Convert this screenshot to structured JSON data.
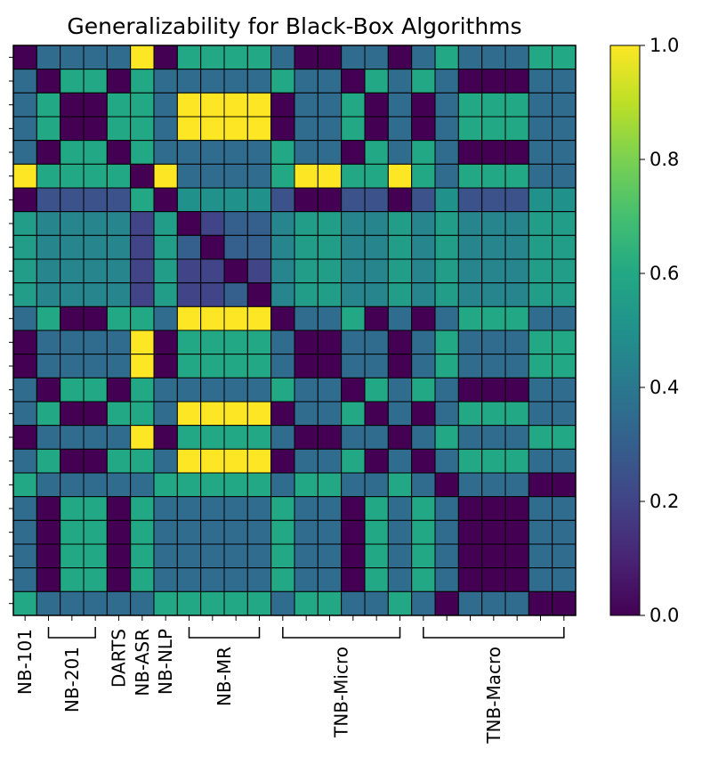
{
  "chart_data": {
    "type": "heatmap",
    "title": "Generalizability for Black-Box Algorithms",
    "xlabel": "",
    "ylabel": "",
    "colormap": "viridis",
    "colorbar": {
      "range": [
        0.0,
        1.0
      ],
      "ticks": [
        "0.0",
        "0.2",
        "0.4",
        "0.6",
        "0.8",
        "1.0"
      ]
    },
    "groups": [
      {
        "label": "NB-101",
        "cols": [
          0,
          0
        ]
      },
      {
        "label": "NB-201",
        "cols": [
          1,
          3
        ]
      },
      {
        "label": "DARTS",
        "cols": [
          4,
          4
        ]
      },
      {
        "label": "NB-ASR",
        "cols": [
          5,
          5
        ]
      },
      {
        "label": "NB-NLP",
        "cols": [
          6,
          6
        ]
      },
      {
        "label": "NB-MR",
        "cols": [
          7,
          10
        ]
      },
      {
        "label": "TNB-Micro",
        "cols": [
          11,
          16
        ]
      },
      {
        "label": "TNB-Macro",
        "cols": [
          17,
          23
        ]
      }
    ],
    "matrix": [
      [
        0.0,
        0.35,
        0.35,
        0.35,
        0.35,
        1.0,
        0.0,
        0.6,
        0.6,
        0.6,
        0.6,
        0.35,
        0.0,
        0.0,
        0.35,
        0.35,
        0.0,
        0.35,
        0.6,
        0.35,
        0.35,
        0.35,
        0.6,
        0.6
      ],
      [
        0.35,
        0.0,
        0.6,
        0.6,
        0.0,
        0.6,
        0.35,
        0.35,
        0.35,
        0.35,
        0.35,
        0.6,
        0.35,
        0.35,
        0.0,
        0.6,
        0.35,
        0.6,
        0.35,
        0.0,
        0.0,
        0.0,
        0.35,
        0.35
      ],
      [
        0.35,
        0.6,
        0.0,
        0.0,
        0.6,
        0.6,
        0.35,
        1.0,
        1.0,
        1.0,
        1.0,
        0.0,
        0.35,
        0.35,
        0.6,
        0.0,
        0.35,
        0.0,
        0.35,
        0.6,
        0.6,
        0.6,
        0.35,
        0.35
      ],
      [
        0.35,
        0.6,
        0.0,
        0.0,
        0.6,
        0.6,
        0.35,
        1.0,
        1.0,
        1.0,
        1.0,
        0.0,
        0.35,
        0.35,
        0.6,
        0.0,
        0.35,
        0.0,
        0.35,
        0.6,
        0.6,
        0.6,
        0.35,
        0.35
      ],
      [
        0.35,
        0.0,
        0.6,
        0.6,
        0.0,
        0.6,
        0.35,
        0.35,
        0.35,
        0.35,
        0.35,
        0.6,
        0.35,
        0.35,
        0.0,
        0.6,
        0.35,
        0.6,
        0.35,
        0.0,
        0.0,
        0.0,
        0.35,
        0.35
      ],
      [
        1.0,
        0.6,
        0.6,
        0.6,
        0.6,
        0.0,
        1.0,
        0.35,
        0.35,
        0.35,
        0.35,
        0.6,
        1.0,
        1.0,
        0.6,
        0.6,
        1.0,
        0.6,
        0.35,
        0.6,
        0.6,
        0.6,
        0.35,
        0.35
      ],
      [
        0.0,
        0.25,
        0.25,
        0.25,
        0.25,
        0.6,
        0.0,
        0.5,
        0.5,
        0.5,
        0.5,
        0.25,
        0.0,
        0.0,
        0.25,
        0.25,
        0.0,
        0.25,
        0.5,
        0.25,
        0.25,
        0.25,
        0.5,
        0.5
      ],
      [
        0.55,
        0.45,
        0.45,
        0.45,
        0.45,
        0.2,
        0.55,
        0.0,
        0.2,
        0.3,
        0.3,
        0.45,
        0.55,
        0.55,
        0.45,
        0.45,
        0.55,
        0.45,
        0.55,
        0.45,
        0.45,
        0.45,
        0.55,
        0.55
      ],
      [
        0.55,
        0.45,
        0.45,
        0.45,
        0.45,
        0.2,
        0.55,
        0.3,
        0.0,
        0.3,
        0.3,
        0.45,
        0.55,
        0.55,
        0.45,
        0.45,
        0.55,
        0.45,
        0.55,
        0.45,
        0.45,
        0.45,
        0.55,
        0.55
      ],
      [
        0.55,
        0.45,
        0.45,
        0.45,
        0.45,
        0.2,
        0.55,
        0.2,
        0.2,
        0.0,
        0.2,
        0.45,
        0.55,
        0.55,
        0.45,
        0.45,
        0.55,
        0.45,
        0.55,
        0.45,
        0.45,
        0.45,
        0.55,
        0.55
      ],
      [
        0.55,
        0.45,
        0.45,
        0.45,
        0.45,
        0.2,
        0.55,
        0.2,
        0.2,
        0.3,
        0.0,
        0.45,
        0.55,
        0.55,
        0.45,
        0.45,
        0.55,
        0.45,
        0.55,
        0.45,
        0.45,
        0.45,
        0.55,
        0.55
      ],
      [
        0.35,
        0.6,
        0.0,
        0.0,
        0.6,
        0.6,
        0.35,
        1.0,
        1.0,
        1.0,
        1.0,
        0.0,
        0.35,
        0.35,
        0.6,
        0.0,
        0.35,
        0.0,
        0.35,
        0.6,
        0.6,
        0.6,
        0.35,
        0.35
      ],
      [
        0.0,
        0.35,
        0.35,
        0.35,
        0.35,
        1.0,
        0.0,
        0.6,
        0.6,
        0.6,
        0.6,
        0.35,
        0.0,
        0.0,
        0.35,
        0.35,
        0.0,
        0.35,
        0.6,
        0.35,
        0.35,
        0.35,
        0.6,
        0.6
      ],
      [
        0.0,
        0.35,
        0.35,
        0.35,
        0.35,
        1.0,
        0.0,
        0.6,
        0.6,
        0.6,
        0.6,
        0.35,
        0.0,
        0.0,
        0.35,
        0.35,
        0.0,
        0.35,
        0.6,
        0.35,
        0.35,
        0.35,
        0.6,
        0.6
      ],
      [
        0.35,
        0.0,
        0.6,
        0.6,
        0.0,
        0.6,
        0.35,
        0.35,
        0.35,
        0.35,
        0.35,
        0.6,
        0.35,
        0.35,
        0.0,
        0.6,
        0.35,
        0.6,
        0.35,
        0.0,
        0.0,
        0.0,
        0.35,
        0.35
      ],
      [
        0.35,
        0.6,
        0.0,
        0.0,
        0.6,
        0.6,
        0.35,
        1.0,
        1.0,
        1.0,
        1.0,
        0.0,
        0.35,
        0.35,
        0.6,
        0.0,
        0.35,
        0.0,
        0.35,
        0.6,
        0.6,
        0.6,
        0.35,
        0.35
      ],
      [
        0.0,
        0.35,
        0.35,
        0.35,
        0.35,
        1.0,
        0.0,
        0.6,
        0.6,
        0.6,
        0.6,
        0.35,
        0.0,
        0.0,
        0.35,
        0.35,
        0.0,
        0.35,
        0.6,
        0.35,
        0.35,
        0.35,
        0.6,
        0.6
      ],
      [
        0.35,
        0.6,
        0.0,
        0.0,
        0.6,
        0.6,
        0.35,
        1.0,
        1.0,
        1.0,
        1.0,
        0.0,
        0.35,
        0.35,
        0.6,
        0.0,
        0.35,
        0.0,
        0.35,
        0.6,
        0.6,
        0.6,
        0.35,
        0.35
      ],
      [
        0.6,
        0.35,
        0.35,
        0.35,
        0.35,
        0.35,
        0.6,
        0.6,
        0.6,
        0.6,
        0.6,
        0.35,
        0.6,
        0.6,
        0.35,
        0.35,
        0.6,
        0.35,
        0.0,
        0.35,
        0.35,
        0.35,
        0.0,
        0.0
      ],
      [
        0.35,
        0.0,
        0.6,
        0.6,
        0.0,
        0.6,
        0.35,
        0.35,
        0.35,
        0.35,
        0.35,
        0.6,
        0.35,
        0.35,
        0.0,
        0.6,
        0.35,
        0.6,
        0.35,
        0.0,
        0.0,
        0.0,
        0.35,
        0.35
      ],
      [
        0.35,
        0.0,
        0.6,
        0.6,
        0.0,
        0.6,
        0.35,
        0.35,
        0.35,
        0.35,
        0.35,
        0.6,
        0.35,
        0.35,
        0.0,
        0.6,
        0.35,
        0.6,
        0.35,
        0.0,
        0.0,
        0.0,
        0.35,
        0.35
      ],
      [
        0.35,
        0.0,
        0.6,
        0.6,
        0.0,
        0.6,
        0.35,
        0.35,
        0.35,
        0.35,
        0.35,
        0.6,
        0.35,
        0.35,
        0.0,
        0.6,
        0.35,
        0.6,
        0.35,
        0.0,
        0.0,
        0.0,
        0.35,
        0.35
      ],
      [
        0.35,
        0.0,
        0.6,
        0.6,
        0.0,
        0.6,
        0.35,
        0.35,
        0.35,
        0.35,
        0.35,
        0.6,
        0.35,
        0.35,
        0.0,
        0.6,
        0.35,
        0.6,
        0.35,
        0.0,
        0.0,
        0.0,
        0.35,
        0.35
      ],
      [
        0.6,
        0.35,
        0.35,
        0.35,
        0.35,
        0.35,
        0.6,
        0.6,
        0.6,
        0.6,
        0.6,
        0.35,
        0.6,
        0.6,
        0.35,
        0.35,
        0.6,
        0.35,
        0.0,
        0.35,
        0.35,
        0.35,
        0.0,
        0.0
      ]
    ]
  }
}
